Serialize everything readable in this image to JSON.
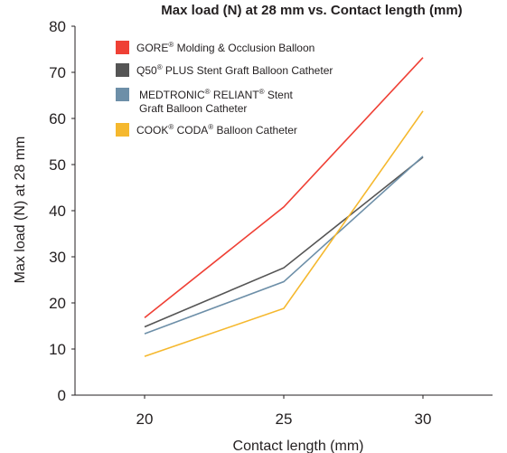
{
  "chart_data": {
    "type": "line",
    "title": "Max load (N) at 28 mm vs. Contact length (mm)",
    "xlabel": "Contact length (mm)",
    "ylabel": "Max load (N) at 28 mm",
    "x": [
      20,
      25,
      30
    ],
    "x_ticks": [
      "20",
      "25",
      "30"
    ],
    "y_ticks": [
      "0",
      "10",
      "20",
      "30",
      "40",
      "50",
      "60",
      "70",
      "80"
    ],
    "xlim": [
      17.5,
      32.5
    ],
    "ylim": [
      0,
      80
    ],
    "grid": false,
    "legend_position": "top-left",
    "series": [
      {
        "name_lines": [
          [
            "GORE",
            "®",
            " Molding & Occlusion Balloon"
          ]
        ],
        "color": "#ef4035",
        "values": [
          16.8,
          40.8,
          73.2
        ]
      },
      {
        "name_lines": [
          [
            "Q50",
            "®",
            " PLUS Stent Graft Balloon Catheter"
          ]
        ],
        "color": "#555555",
        "values": [
          14.8,
          27.6,
          51.6
        ]
      },
      {
        "name_lines": [
          [
            "MEDTRONIC",
            "®",
            " RELIANT",
            "®",
            " Stent"
          ],
          [
            "Graft Balloon Catheter"
          ]
        ],
        "color": "#6d8fa8",
        "values": [
          13.3,
          24.6,
          51.8
        ]
      },
      {
        "name_lines": [
          [
            "COOK",
            "®",
            " CODA",
            "®",
            " Balloon Catheter"
          ]
        ],
        "color": "#f5b82e",
        "values": [
          8.4,
          18.8,
          61.6
        ]
      }
    ]
  }
}
